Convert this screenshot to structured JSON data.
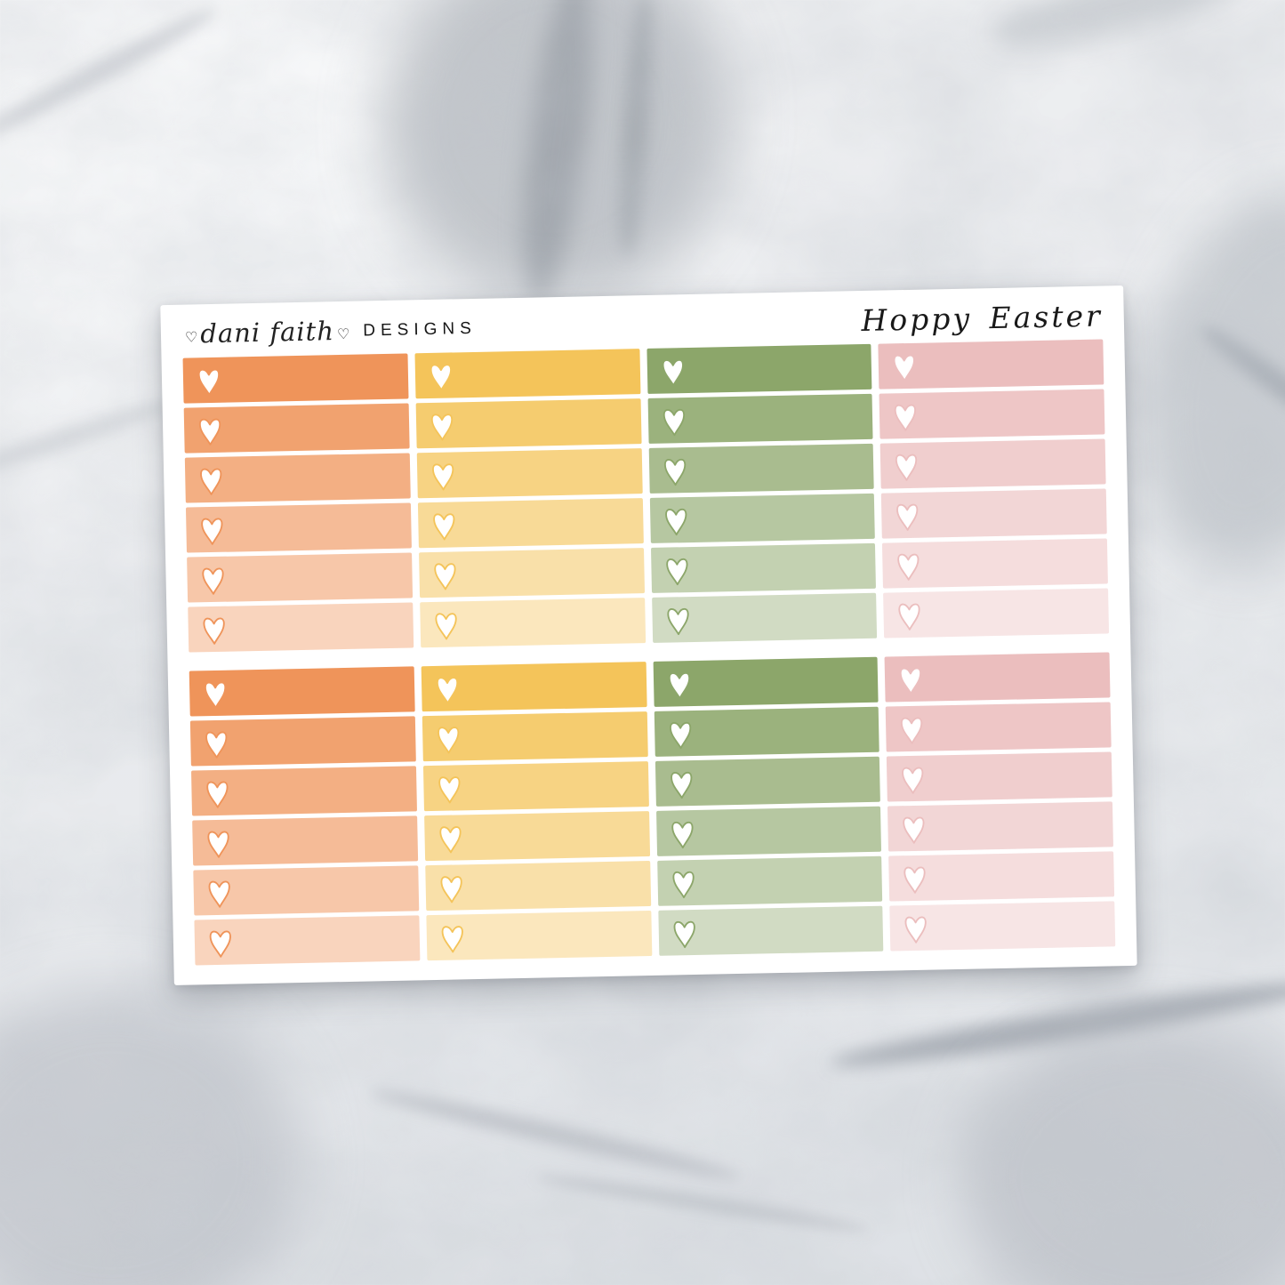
{
  "brand": {
    "script": "dani faith",
    "word": "DESIGNS",
    "heart_glyph": "♡"
  },
  "title": {
    "text": "Hoppy Easter"
  },
  "sticker_sheet": {
    "description": "heart checklist quarter-box stickers, ombre shades",
    "blocks": 2,
    "rows_per_block": 6,
    "row_alphas": [
      1,
      0.87,
      0.75,
      0.63,
      0.52,
      0.4
    ],
    "columns": [
      {
        "name": "orange",
        "color": "#EF945A"
      },
      {
        "name": "yellow",
        "color": "#F4C45A"
      },
      {
        "name": "green",
        "color": "#8CA66A"
      },
      {
        "name": "pink",
        "color": "#EBBEBE"
      }
    ],
    "checkbox_icon": "heart-icon",
    "sheet_color": "#FFFFFF"
  },
  "background": {
    "style": "white-gray marble surface",
    "base_color": "#E9EBEE",
    "vein_color": "#9AA1AB"
  }
}
